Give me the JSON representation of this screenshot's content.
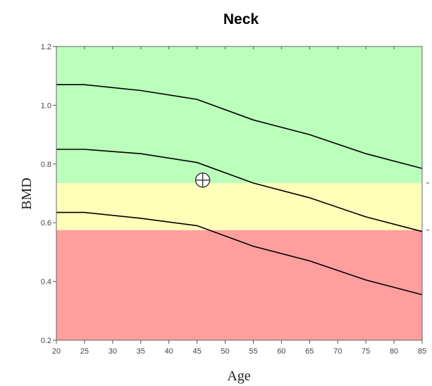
{
  "chart_data": {
    "type": "line",
    "title": "Neck",
    "xlabel": "Age",
    "ylabel": "BMD",
    "xlim": [
      20,
      85
    ],
    "ylim": [
      0.2,
      1.2
    ],
    "xticks": [
      20,
      25,
      30,
      35,
      40,
      45,
      50,
      55,
      60,
      65,
      70,
      75,
      80,
      85
    ],
    "yticks": [
      0.2,
      0.4,
      0.6,
      0.8,
      1.0,
      1.2
    ],
    "ytick_labels": [
      "0.2",
      "0.4",
      "0.6",
      "0.8",
      "1.0",
      "1.2"
    ],
    "bands": [
      {
        "from": 0.2,
        "to": 0.575,
        "color": "#ff9e9e"
      },
      {
        "from": 0.575,
        "to": 0.735,
        "color": "#ffffba"
      },
      {
        "from": 0.735,
        "to": 1.2,
        "color": "#baffba"
      }
    ],
    "series": [
      {
        "x": [
          20,
          25,
          35,
          45,
          55,
          65,
          75,
          85
        ],
        "values": [
          1.07,
          1.07,
          1.05,
          1.02,
          0.95,
          0.9,
          0.835,
          0.785
        ],
        "color": "#000000"
      },
      {
        "x": [
          20,
          25,
          35,
          45,
          55,
          65,
          75,
          85
        ],
        "values": [
          0.85,
          0.85,
          0.835,
          0.805,
          0.735,
          0.685,
          0.62,
          0.57
        ],
        "color": "#000000"
      },
      {
        "x": [
          20,
          25,
          35,
          45,
          55,
          65,
          75,
          85
        ],
        "values": [
          0.635,
          0.635,
          0.615,
          0.59,
          0.52,
          0.47,
          0.405,
          0.355
        ],
        "color": "#000000"
      }
    ],
    "marker": {
      "x": 46,
      "y": 0.745,
      "symbol": "circle-cross"
    },
    "grid": false
  }
}
